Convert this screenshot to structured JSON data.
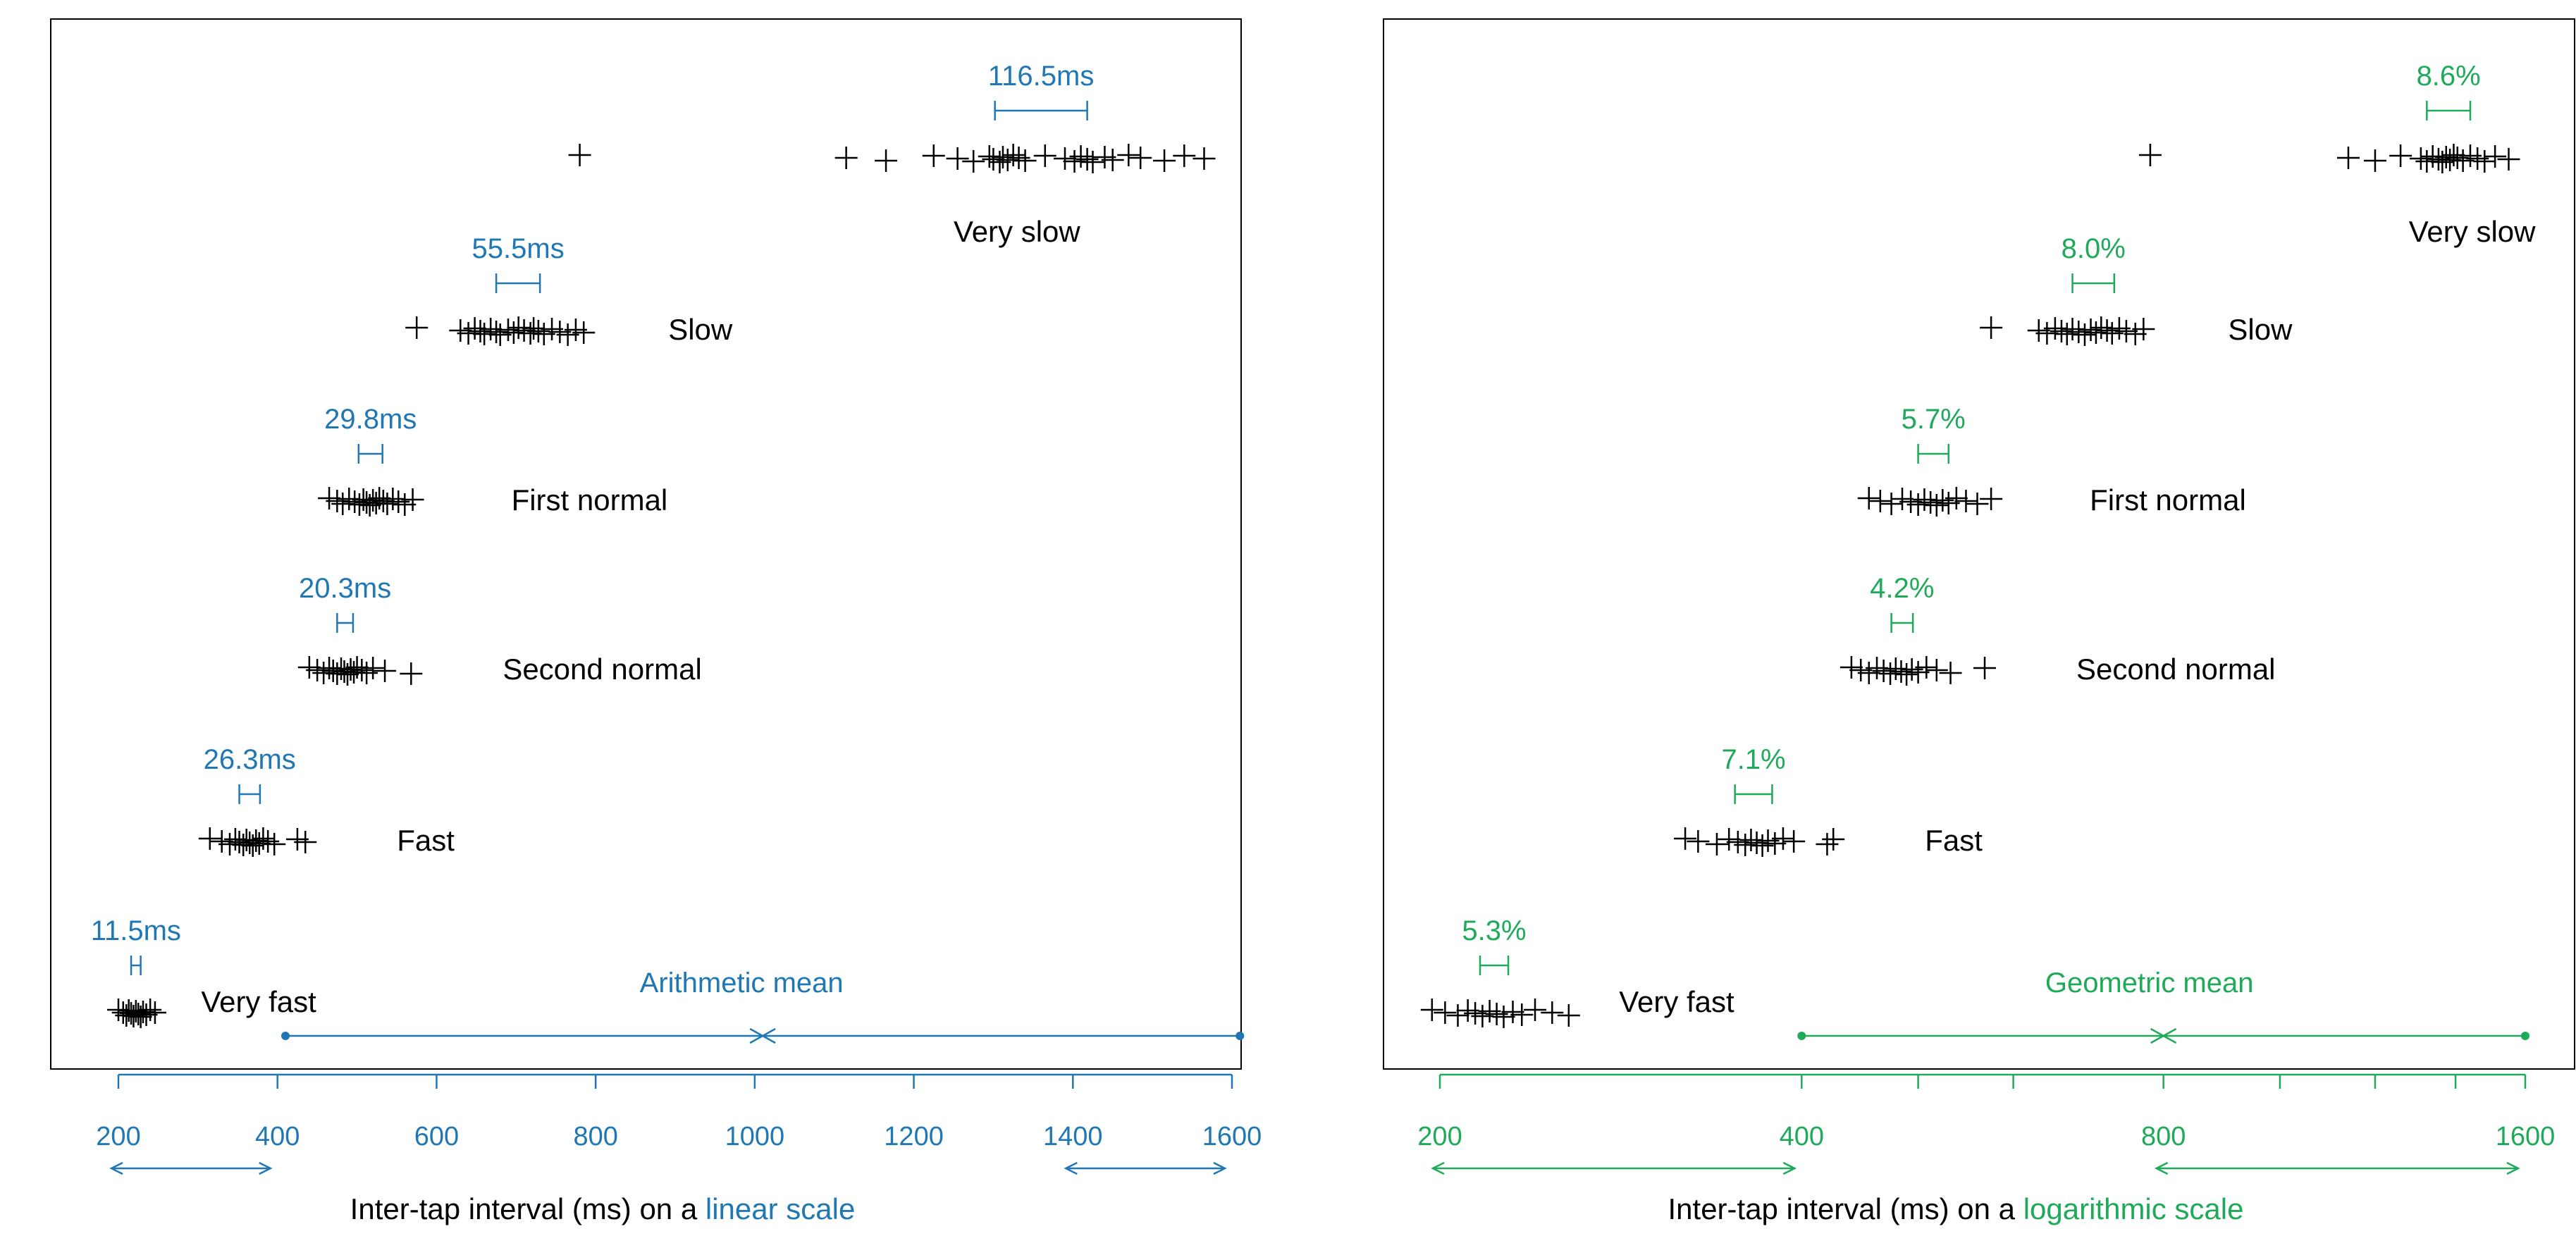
{
  "colors": {
    "linear": "#1f77b4",
    "log": "#1faa59",
    "ink": "#000000"
  },
  "chart_data": [
    {
      "type": "scatter",
      "scale": "linear",
      "xlabel_prefix": "Inter-tap interval (ms) on a ",
      "xlabel_highlight": "linear scale",
      "xlim": [
        190,
        1620
      ],
      "ticks": [
        200,
        400,
        600,
        800,
        1000,
        1200,
        1400,
        1600
      ],
      "tick_labels": [
        "200",
        "400",
        "600",
        "800",
        "1000",
        "1200",
        "1400",
        "1600"
      ],
      "mean_label": "Arithmetic mean",
      "mean_bracket": [
        410,
        1010,
        1610
      ],
      "bottom_arrows": [
        [
          200,
          400
        ],
        [
          1400,
          1600
        ]
      ],
      "series": [
        {
          "name": "Very slow",
          "mean": 1360,
          "spread_label": "116.5ms",
          "spread_interval": [
            1302,
            1418
          ],
          "points": [
            780,
            1115,
            1165,
            1225,
            1255,
            1275,
            1295,
            1300,
            1308,
            1312,
            1318,
            1325,
            1332,
            1340,
            1365,
            1390,
            1402,
            1410,
            1418,
            1425,
            1440,
            1450,
            1470,
            1485,
            1515,
            1540,
            1565
          ]
        },
        {
          "name": "Slow",
          "mean": 700,
          "spread_label": "55.5ms",
          "spread_interval": [
            675,
            730
          ],
          "points": [
            575,
            630,
            640,
            648,
            655,
            660,
            668,
            675,
            680,
            690,
            697,
            703,
            710,
            718,
            722,
            728,
            735,
            745,
            755,
            765,
            775,
            785
          ]
        },
        {
          "name": "First normal",
          "mean": 515,
          "spread_label": "29.8ms",
          "spread_interval": [
            502,
            532
          ],
          "points": [
            465,
            475,
            482,
            490,
            497,
            503,
            508,
            512,
            516,
            520,
            524,
            528,
            533,
            538,
            545,
            552,
            560,
            570
          ]
        },
        {
          "name": "Second normal",
          "mean": 485,
          "spread_label": "20.3ms",
          "spread_interval": [
            475,
            495
          ],
          "points": [
            440,
            450,
            458,
            465,
            470,
            475,
            480,
            484,
            488,
            492,
            496,
            500,
            506,
            512,
            520,
            535,
            568
          ]
        },
        {
          "name": "Fast",
          "mean": 365,
          "spread_label": "26.3ms",
          "spread_interval": [
            352,
            378
          ],
          "points": [
            315,
            330,
            340,
            347,
            352,
            357,
            361,
            365,
            369,
            373,
            377,
            382,
            388,
            396,
            425,
            435
          ]
        },
        {
          "name": "Very fast",
          "mean": 222,
          "spread_label": "11.5ms",
          "spread_interval": [
            216,
            228
          ],
          "points": [
            200,
            206,
            210,
            213,
            216,
            219,
            222,
            225,
            228,
            231,
            235,
            240,
            246
          ]
        }
      ]
    },
    {
      "type": "scatter",
      "scale": "log",
      "xlabel_prefix": "Inter-tap interval (ms) on a ",
      "xlabel_highlight": "logarithmic scale",
      "xlim": [
        195,
        1640
      ],
      "ticks": [
        200,
        400,
        500,
        600,
        800,
        1000,
        1200,
        1400,
        1600
      ],
      "tick_labels": [
        "200",
        "400",
        "",
        "",
        "800",
        "",
        "",
        "",
        "1600"
      ],
      "mean_label": "Geometric mean",
      "mean_bracket": [
        400,
        800,
        1600
      ],
      "bottom_arrows": [
        [
          200,
          400
        ],
        [
          800,
          1600
        ]
      ],
      "series": [
        {
          "name": "Very slow",
          "mean": 1380,
          "spread_label": "8.6%",
          "spread_interval": [
            1325,
            1440
          ],
          "points": [
            780,
            1140,
            1200,
            1260,
            1310,
            1325,
            1340,
            1355,
            1365,
            1375,
            1385,
            1395,
            1405,
            1420,
            1440,
            1460,
            1480,
            1510,
            1550
          ]
        },
        {
          "name": "Slow",
          "mean": 700,
          "spread_label": "8.0%",
          "spread_interval": [
            672,
            728
          ],
          "points": [
            575,
            630,
            640,
            650,
            658,
            665,
            672,
            680,
            688,
            696,
            703,
            710,
            718,
            725,
            735,
            745,
            758,
            770
          ]
        },
        {
          "name": "First normal",
          "mean": 515,
          "spread_label": "5.7%",
          "spread_interval": [
            500,
            530
          ],
          "points": [
            455,
            465,
            475,
            485,
            493,
            500,
            506,
            512,
            518,
            524,
            530,
            538,
            548,
            560,
            575
          ]
        },
        {
          "name": "Second normal",
          "mean": 485,
          "spread_label": "4.2%",
          "spread_interval": [
            475,
            495
          ],
          "points": [
            440,
            448,
            455,
            462,
            468,
            474,
            479,
            484,
            489,
            494,
            500,
            508,
            518,
            532,
            568
          ]
        },
        {
          "name": "Fast",
          "mean": 365,
          "spread_label": "7.1%",
          "spread_interval": [
            352,
            378
          ],
          "points": [
            320,
            328,
            340,
            348,
            354,
            359,
            363,
            367,
            371,
            375,
            380,
            386,
            394,
            420,
            425
          ]
        },
        {
          "name": "Very fast",
          "mean": 222,
          "spread_label": "5.3%",
          "spread_interval": [
            216,
            228
          ],
          "points": [
            197,
            202,
            207,
            211,
            214,
            217,
            220,
            223,
            226,
            230,
            234,
            240,
            248,
            256
          ]
        }
      ]
    }
  ]
}
